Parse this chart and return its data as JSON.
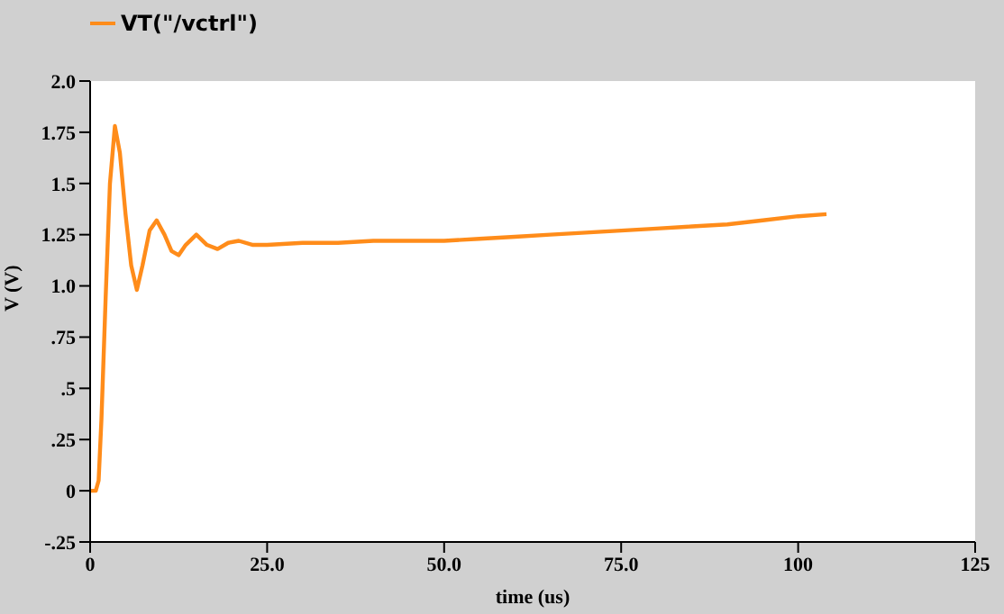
{
  "chart_data": {
    "type": "line",
    "xlabel": "time (us)",
    "ylabel": "V (V)",
    "legend": "top left",
    "grid": false,
    "marker": "none",
    "line_style": "solid",
    "xlim": [
      0,
      125
    ],
    "xticks": [
      0,
      {
        "value": 25,
        "label": "25.0"
      },
      {
        "value": 50,
        "label": "50.0"
      },
      {
        "value": 75,
        "label": "75.0"
      },
      100,
      125
    ],
    "ylim": [
      -0.25,
      2
    ],
    "yticks": [
      {
        "value": -0.25,
        "label": "-.25"
      },
      0,
      {
        "value": 0.25,
        "label": ".25"
      },
      {
        "value": 0.5,
        "label": ".5"
      },
      {
        "value": 0.75,
        "label": ".75"
      },
      {
        "value": 1,
        "label": "1.0"
      },
      1.25,
      1.5,
      1.75,
      {
        "value": 2,
        "label": "2.0"
      }
    ],
    "series": [
      {
        "name": "VT(\"/vctrl\")",
        "color": "#ff8c1a",
        "x": [
          0,
          0.8,
          1.2,
          1.6,
          2.2,
          2.8,
          3.5,
          4.2,
          5,
          5.8,
          6.6,
          7.4,
          8.4,
          9.4,
          10.5,
          11.5,
          12.5,
          13.5,
          15,
          16.5,
          18,
          19.5,
          21,
          23,
          25,
          30,
          35,
          40,
          45,
          50,
          55,
          60,
          65,
          70,
          75,
          80,
          85,
          90,
          95,
          100,
          104
        ],
        "values": [
          0,
          0,
          0.05,
          0.35,
          0.95,
          1.5,
          1.78,
          1.65,
          1.35,
          1.1,
          0.98,
          1.1,
          1.27,
          1.32,
          1.25,
          1.17,
          1.15,
          1.2,
          1.25,
          1.2,
          1.18,
          1.21,
          1.22,
          1.2,
          1.2,
          1.21,
          1.21,
          1.22,
          1.22,
          1.22,
          1.23,
          1.24,
          1.25,
          1.26,
          1.27,
          1.28,
          1.29,
          1.3,
          1.32,
          1.34,
          1.35
        ]
      }
    ]
  }
}
